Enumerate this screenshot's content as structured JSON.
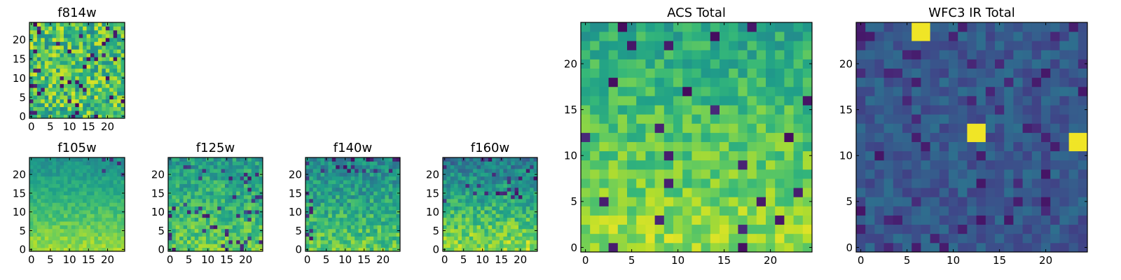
{
  "figure": {
    "colormap": "viridis",
    "colormap_stops": [
      "#440154",
      "#482878",
      "#3e4989",
      "#31688e",
      "#26828e",
      "#1f9e89",
      "#35b779",
      "#6ece58",
      "#b5de2b",
      "#fde725"
    ]
  },
  "chart_data": [
    {
      "type": "heatmap",
      "id": "f814w",
      "title": "f814w",
      "grid": [
        25,
        25
      ],
      "xlim": [
        -0.5,
        24.5
      ],
      "ylim": [
        -0.5,
        24.5
      ],
      "xticks": [
        0,
        5,
        10,
        15,
        20
      ],
      "xtick_labels": [
        "0",
        "5",
        "10",
        "15",
        "20"
      ],
      "yticks": [
        0,
        5,
        10,
        15,
        20
      ],
      "ytick_labels": [
        "0",
        "5",
        "10",
        "15",
        "20"
      ],
      "values_summary": "noisy field, mostly green-yellow (normalized 0.5-0.95) with scattered dark purple pixels",
      "value_range": [
        0.0,
        1.0
      ]
    },
    {
      "type": "heatmap",
      "id": "f105w",
      "title": "f105w",
      "grid": [
        25,
        25
      ],
      "xlim": [
        -0.5,
        24.5
      ],
      "ylim": [
        -0.5,
        24.5
      ],
      "xticks": [
        0,
        5,
        10,
        15,
        20
      ],
      "xtick_labels": [
        "0",
        "5",
        "10",
        "15",
        "20"
      ],
      "yticks": [
        0,
        5,
        10,
        15,
        20
      ],
      "ytick_labels": [
        "0",
        "5",
        "10",
        "15",
        "20"
      ],
      "values_summary": "smooth field, brighter (yellow) toward bottom, teal toward top, few dark pixels top-right",
      "value_range": [
        0.0,
        1.0
      ]
    },
    {
      "type": "heatmap",
      "id": "f125w",
      "title": "f125w",
      "grid": [
        25,
        25
      ],
      "xlim": [
        -0.5,
        24.5
      ],
      "ylim": [
        -0.5,
        24.5
      ],
      "xticks": [
        0,
        5,
        10,
        15,
        20
      ],
      "xtick_labels": [
        "0",
        "5",
        "10",
        "15",
        "20"
      ],
      "yticks": [
        0,
        5,
        10,
        15,
        20
      ],
      "ytick_labels": [
        "0",
        "5",
        "10",
        "15",
        "20"
      ],
      "values_summary": "mostly green-yellow with scattered dark purple clumps near center-right",
      "value_range": [
        0.0,
        1.0
      ]
    },
    {
      "type": "heatmap",
      "id": "f140w",
      "title": "f140w",
      "grid": [
        25,
        25
      ],
      "xlim": [
        -0.5,
        24.5
      ],
      "ylim": [
        -0.5,
        24.5
      ],
      "xticks": [
        0,
        5,
        10,
        15,
        20
      ],
      "xtick_labels": [
        "0",
        "5",
        "10",
        "15",
        "20"
      ],
      "yticks": [
        0,
        5,
        10,
        15,
        20
      ],
      "ytick_labels": [
        "0",
        "5",
        "10",
        "15",
        "20"
      ],
      "values_summary": "teal-green field with dark pixels near top and left edge, yellow patches at bottom",
      "value_range": [
        0.0,
        1.0
      ]
    },
    {
      "type": "heatmap",
      "id": "f160w",
      "title": "f160w",
      "grid": [
        25,
        25
      ],
      "xlim": [
        -0.5,
        24.5
      ],
      "ylim": [
        -0.5,
        24.5
      ],
      "xticks": [
        0,
        5,
        10,
        15,
        20
      ],
      "xtick_labels": [
        "0",
        "5",
        "10",
        "15",
        "20"
      ],
      "yticks": [
        0,
        5,
        10,
        15,
        20
      ],
      "ytick_labels": [
        "0",
        "5",
        "10",
        "15",
        "20"
      ],
      "values_summary": "teal-green top half with dark purple pixels, yellow gradient across bottom",
      "value_range": [
        0.0,
        1.0
      ]
    },
    {
      "type": "heatmap",
      "id": "acs_total",
      "title": "ACS Total",
      "grid": [
        25,
        25
      ],
      "xlim": [
        -0.5,
        24.5
      ],
      "ylim": [
        -0.5,
        24.5
      ],
      "xticks": [
        0,
        5,
        10,
        15,
        20
      ],
      "xtick_labels": [
        "0",
        "5",
        "10",
        "15",
        "20"
      ],
      "yticks": [
        0,
        5,
        10,
        15,
        20
      ],
      "ytick_labels": [
        "0",
        "5",
        "10",
        "15",
        "20"
      ],
      "values_summary": "green to yellow field, brighter at bottom, scattered dark purple pixels",
      "value_range": [
        0.0,
        1.0
      ]
    },
    {
      "type": "heatmap",
      "id": "wfc3_ir_total",
      "title": "WFC3 IR Total",
      "grid": [
        25,
        25
      ],
      "xlim": [
        -0.5,
        24.5
      ],
      "ylim": [
        -0.5,
        24.5
      ],
      "xticks": [
        0,
        5,
        10,
        15,
        20
      ],
      "xtick_labels": [
        "0",
        "5",
        "10",
        "15",
        "20"
      ],
      "yticks": [
        0,
        5,
        10,
        15,
        20
      ],
      "ytick_labels": [
        "0",
        "5",
        "10",
        "15",
        "20"
      ],
      "values_summary": "dark blue-teal field with many purple pixels; bright yellow 2x2 blocks at (6-7, 23-24), (12-13, 12-13) and near (23-24, 11-12)",
      "value_range": [
        0.0,
        1.0
      ],
      "bright_blocks": [
        {
          "x": [
            6,
            7
          ],
          "y": [
            23,
            24
          ]
        },
        {
          "x": [
            12,
            13
          ],
          "y": [
            12,
            13
          ]
        },
        {
          "x": [
            23,
            24
          ],
          "y": [
            11,
            12
          ]
        }
      ]
    }
  ]
}
